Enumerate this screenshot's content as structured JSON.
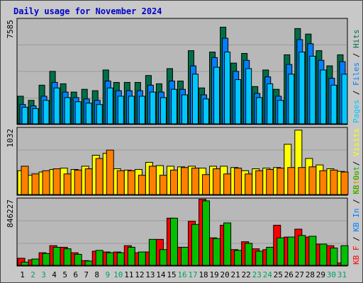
{
  "window": {
    "title": "Daily usage for November 2024"
  },
  "colors": {
    "hits": "#006e46",
    "files": "#0080ff",
    "pages": "#00c8ff",
    "visits": "#ffff00",
    "sites": "#ff8000",
    "kbin": "#00c000",
    "kbout": "#ff0000",
    "weekend_label": "#00a060",
    "weekday_label": "#000000",
    "panel_bg": "#b8b8b8",
    "grid": "#9a9a9a"
  },
  "chart_data": [
    {
      "type": "bar",
      "title": "Daily usage for November 2024",
      "panel": "hits-files-pages",
      "ymax_label": "7585",
      "ylim": [
        0,
        7585
      ],
      "legend": [
        "Pages",
        "Files",
        "Hits"
      ],
      "legend_separator": "/",
      "categories": [
        "1",
        "2",
        "3",
        "4",
        "5",
        "6",
        "7",
        "8",
        "9",
        "10",
        "11",
        "12",
        "13",
        "14",
        "15",
        "16",
        "17",
        "18",
        "19",
        "20",
        "21",
        "22",
        "23",
        "24",
        "25",
        "26",
        "27",
        "28",
        "29",
        "30",
        "31"
      ],
      "series": [
        {
          "name": "Hits",
          "values": [
            2000,
            1700,
            2800,
            3800,
            2900,
            2300,
            2500,
            2400,
            3900,
            3000,
            3000,
            3000,
            3500,
            2900,
            4000,
            3100,
            5300,
            2600,
            5200,
            7000,
            4400,
            5100,
            2700,
            3900,
            2500,
            5000,
            6900,
            6500,
            5300,
            4200,
            5000
          ]
        },
        {
          "name": "Files",
          "values": [
            1400,
            1300,
            2000,
            3000,
            2300,
            1900,
            1800,
            1700,
            3100,
            2400,
            2400,
            2400,
            2800,
            2300,
            3100,
            2500,
            4200,
            2100,
            4800,
            6200,
            3800,
            4600,
            2200,
            3400,
            2000,
            4300,
            6100,
            5800,
            4600,
            3300,
            4500
          ]
        },
        {
          "name": "Pages",
          "values": [
            1200,
            1100,
            1700,
            2600,
            1900,
            1600,
            1500,
            1400,
            2600,
            2000,
            2000,
            2000,
            2300,
            1900,
            2500,
            2100,
            3600,
            1800,
            4100,
            5200,
            3200,
            4000,
            1900,
            2900,
            1700,
            3600,
            5200,
            4900,
            3900,
            2800,
            3600
          ]
        }
      ]
    },
    {
      "type": "bar",
      "panel": "visits-sites",
      "ymax_label": "1032",
      "ylim": [
        0,
        1032
      ],
      "legend": [
        "Sites",
        "Visits"
      ],
      "legend_separator": "/",
      "categories": [
        "1",
        "2",
        "3",
        "4",
        "5",
        "6",
        "7",
        "8",
        "9",
        "10",
        "11",
        "12",
        "13",
        "14",
        "15",
        "16",
        "17",
        "18",
        "19",
        "20",
        "21",
        "22",
        "23",
        "24",
        "25",
        "26",
        "27",
        "28",
        "29",
        "30",
        "31"
      ],
      "series": [
        {
          "name": "Visits",
          "values": [
            370,
            300,
            350,
            390,
            410,
            390,
            440,
            610,
            640,
            400,
            380,
            390,
            500,
            450,
            440,
            430,
            440,
            410,
            440,
            440,
            420,
            370,
            400,
            410,
            420,
            780,
            1000,
            560,
            460,
            400,
            360
          ]
        },
        {
          "name": "Sites",
          "values": [
            440,
            320,
            370,
            400,
            320,
            380,
            400,
            560,
            690,
            370,
            370,
            300,
            440,
            300,
            380,
            420,
            410,
            310,
            400,
            320,
            410,
            320,
            370,
            390,
            410,
            420,
            420,
            430,
            370,
            380,
            350
          ]
        }
      ]
    },
    {
      "type": "bar",
      "panel": "kbin-kbout",
      "ymax_label": "846227",
      "ylim": [
        0,
        846227
      ],
      "legend": [
        "KB F",
        "KB In",
        "KB Out"
      ],
      "legend_separator": "/",
      "categories": [
        "1",
        "2",
        "3",
        "4",
        "5",
        "6",
        "7",
        "8",
        "9",
        "10",
        "11",
        "12",
        "13",
        "14",
        "15",
        "16",
        "17",
        "18",
        "19",
        "20",
        "21",
        "22",
        "23",
        "24",
        "25",
        "26",
        "27",
        "28",
        "29",
        "30",
        "31"
      ],
      "series": [
        {
          "name": "KB Out",
          "values": [
            90000,
            70000,
            160000,
            250000,
            230000,
            160000,
            60000,
            180000,
            170000,
            170000,
            250000,
            160000,
            170000,
            330000,
            600000,
            230000,
            560000,
            840000,
            350000,
            510000,
            200000,
            300000,
            210000,
            200000,
            510000,
            360000,
            460000,
            360000,
            270000,
            250000,
            30000
          ]
        },
        {
          "name": "KB In",
          "values": [
            40000,
            80000,
            150000,
            230000,
            210000,
            140000,
            55000,
            190000,
            160000,
            160000,
            230000,
            170000,
            330000,
            200000,
            600000,
            230000,
            520000,
            820000,
            340000,
            540000,
            190000,
            280000,
            180000,
            230000,
            350000,
            360000,
            380000,
            370000,
            270000,
            220000,
            250000
          ]
        }
      ]
    }
  ],
  "x_weekend_days": [
    2,
    3,
    9,
    10,
    16,
    17,
    23,
    24,
    30,
    31
  ]
}
